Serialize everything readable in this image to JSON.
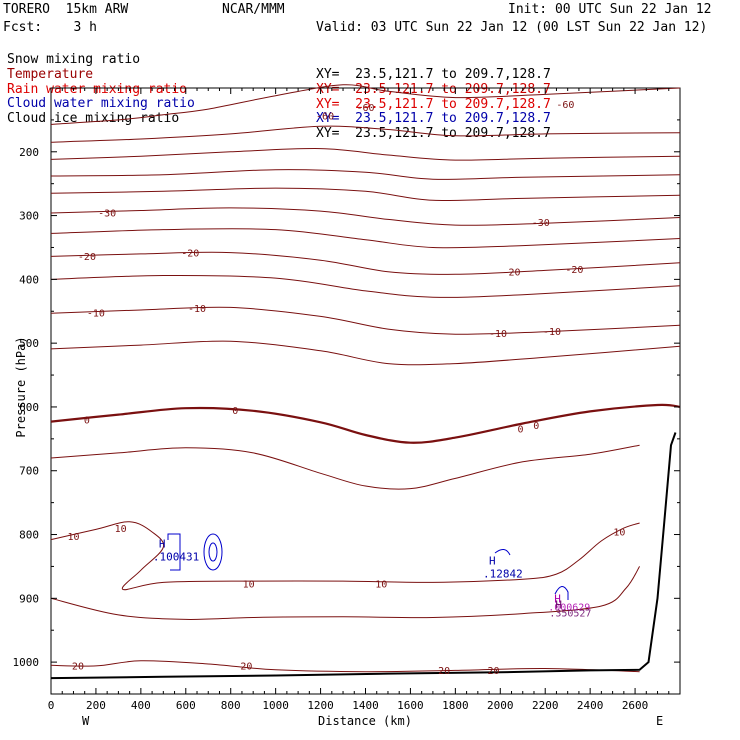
{
  "header": {
    "model": "TORERO  15km ARW",
    "center": "NCAR/MMM",
    "init": "Init: 00 UTC Sun 22 Jan 12",
    "fcst": "Fcst:    3 h",
    "valid": "Valid: 03 UTC Sun 22 Jan 12 (00 LST Sun 22 Jan 12)"
  },
  "legend": [
    {
      "name": "Snow mixing ratio",
      "xy": "XY=  23.5,121.7 to 209.7,128.7",
      "color": "#000000",
      "xy_color": "#000000"
    },
    {
      "name": "Temperature",
      "xy": "XY=  23.5,121.7 to 209.7,128.7",
      "color": "#990000",
      "xy_color": "#cc0000"
    },
    {
      "name": "Rain water mixing ratio",
      "xy": "XY=  23.5,121.7 to 209.7,128.7",
      "color": "#dd0000",
      "xy_color": "#dd0000"
    },
    {
      "name": "Cloud water mixing ratio",
      "xy": "XY=  23.5,121.7 to 209.7,128.7",
      "color": "#0000aa",
      "xy_color": "#0000aa"
    },
    {
      "name": "Cloud ice mixing ratio",
      "xy": "XY=  23.5,121.7 to 209.7,128.7",
      "color": "#000000",
      "xy_color": "#000000"
    }
  ],
  "chart_data": {
    "type": "line",
    "title": "",
    "xlabel": "Distance (km)",
    "ylabel": "Pressure (hPa)",
    "x_left_label": "W",
    "x_right_label": "E",
    "xlim": [
      0,
      2800
    ],
    "ylim": [
      1050,
      100
    ],
    "x_ticks": [
      0,
      200,
      400,
      600,
      800,
      1000,
      1200,
      1400,
      1600,
      1800,
      2000,
      2200,
      2400,
      2600
    ],
    "y_ticks": [
      200,
      300,
      400,
      500,
      600,
      700,
      800,
      900,
      1000
    ],
    "grid": false,
    "temperature_contours": [
      {
        "level": -60,
        "label": "-60",
        "points": [
          [
            0,
            157
          ],
          [
            300,
            150
          ],
          [
            500,
            142
          ],
          [
            700,
            133
          ],
          [
            1000,
            112
          ],
          [
            1300,
            95
          ],
          [
            1500,
            105
          ],
          [
            1800,
            115
          ],
          [
            2200,
            110
          ],
          [
            2500,
            105
          ],
          [
            2800,
            100
          ]
        ],
        "label_positions": [
          [
            1400,
            130
          ],
          [
            1220,
            143
          ],
          [
            2290,
            125
          ]
        ]
      },
      {
        "level": -50,
        "label": "",
        "points": [
          [
            0,
            185
          ],
          [
            400,
            180
          ],
          [
            800,
            172
          ],
          [
            1200,
            160
          ],
          [
            1500,
            165
          ],
          [
            1800,
            175
          ],
          [
            2200,
            172
          ],
          [
            2800,
            170
          ]
        ],
        "label_positions": []
      },
      {
        "level": -45,
        "label": "",
        "points": [
          [
            0,
            212
          ],
          [
            400,
            207
          ],
          [
            800,
            200
          ],
          [
            1200,
            195
          ],
          [
            1500,
            205
          ],
          [
            1800,
            213
          ],
          [
            2200,
            210
          ],
          [
            2800,
            207
          ]
        ],
        "label_positions": []
      },
      {
        "level": -40,
        "label": "",
        "points": [
          [
            0,
            238
          ],
          [
            500,
            236
          ],
          [
            1000,
            228
          ],
          [
            1400,
            232
          ],
          [
            1700,
            243
          ],
          [
            2100,
            240
          ],
          [
            2800,
            236
          ]
        ],
        "label_positions": []
      },
      {
        "level": -35,
        "label": "",
        "points": [
          [
            0,
            265
          ],
          [
            500,
            262
          ],
          [
            1000,
            257
          ],
          [
            1400,
            262
          ],
          [
            1700,
            276
          ],
          [
            2100,
            273
          ],
          [
            2800,
            268
          ]
        ],
        "label_positions": []
      },
      {
        "level": -30,
        "label": "-30",
        "points": [
          [
            0,
            296
          ],
          [
            400,
            292
          ],
          [
            800,
            288
          ],
          [
            1200,
            293
          ],
          [
            1500,
            306
          ],
          [
            1800,
            315
          ],
          [
            2200,
            312
          ],
          [
            2800,
            303
          ]
        ],
        "label_positions": [
          [
            250,
            295
          ],
          [
            2180,
            310
          ]
        ]
      },
      {
        "level": -25,
        "label": "",
        "points": [
          [
            0,
            328
          ],
          [
            500,
            322
          ],
          [
            1000,
            322
          ],
          [
            1400,
            338
          ],
          [
            1700,
            350
          ],
          [
            2100,
            347
          ],
          [
            2800,
            336
          ]
        ],
        "label_positions": []
      },
      {
        "level": -20,
        "label": "-20",
        "points": [
          [
            0,
            364
          ],
          [
            400,
            360
          ],
          [
            800,
            358
          ],
          [
            1200,
            370
          ],
          [
            1500,
            388
          ],
          [
            1800,
            392
          ],
          [
            2200,
            386
          ],
          [
            2800,
            374
          ]
        ],
        "label_positions": [
          [
            160,
            363
          ],
          [
            620,
            358
          ],
          [
            2050,
            388
          ],
          [
            2330,
            384
          ]
        ]
      },
      {
        "level": -15,
        "label": "",
        "points": [
          [
            0,
            400
          ],
          [
            500,
            394
          ],
          [
            1000,
            398
          ],
          [
            1400,
            418
          ],
          [
            1700,
            428
          ],
          [
            2100,
            424
          ],
          [
            2800,
            410
          ]
        ],
        "label_positions": []
      },
      {
        "level": -10,
        "label": "-10",
        "points": [
          [
            0,
            453
          ],
          [
            400,
            448
          ],
          [
            800,
            444
          ],
          [
            1200,
            458
          ],
          [
            1500,
            478
          ],
          [
            1800,
            486
          ],
          [
            2200,
            482
          ],
          [
            2800,
            472
          ]
        ],
        "label_positions": [
          [
            200,
            452
          ],
          [
            650,
            445
          ],
          [
            1990,
            484
          ],
          [
            2230,
            481
          ]
        ]
      },
      {
        "level": -5,
        "label": "",
        "points": [
          [
            0,
            509
          ],
          [
            400,
            503
          ],
          [
            800,
            497
          ],
          [
            1200,
            512
          ],
          [
            1500,
            532
          ],
          [
            1800,
            532
          ],
          [
            2200,
            522
          ],
          [
            2800,
            505
          ]
        ],
        "label_positions": []
      },
      {
        "level": 0,
        "label": "0",
        "points": [
          [
            0,
            623
          ],
          [
            300,
            612
          ],
          [
            600,
            602
          ],
          [
            900,
            606
          ],
          [
            1200,
            624
          ],
          [
            1400,
            644
          ],
          [
            1600,
            656
          ],
          [
            1800,
            648
          ],
          [
            2100,
            626
          ],
          [
            2400,
            607
          ],
          [
            2700,
            597
          ],
          [
            2800,
            600
          ]
        ],
        "label_positions": [
          [
            160,
            620
          ],
          [
            820,
            605
          ],
          [
            2090,
            634
          ],
          [
            2160,
            628
          ]
        ]
      },
      {
        "level": 5,
        "label": "",
        "points": [
          [
            0,
            680
          ],
          [
            300,
            672
          ],
          [
            600,
            664
          ],
          [
            900,
            672
          ],
          [
            1200,
            704
          ],
          [
            1400,
            724
          ],
          [
            1600,
            728
          ],
          [
            1800,
            712
          ],
          [
            2100,
            686
          ],
          [
            2400,
            674
          ],
          [
            2620,
            660
          ]
        ],
        "label_positions": []
      },
      {
        "level": 10,
        "label": "10",
        "points": [
          [
            0,
            808
          ],
          [
            200,
            792
          ],
          [
            350,
            780
          ],
          [
            450,
            796
          ],
          [
            500,
            820
          ],
          [
            400,
            856
          ],
          [
            320,
            886
          ],
          [
            500,
            875
          ],
          [
            900,
            873
          ],
          [
            1300,
            873
          ],
          [
            1700,
            875
          ],
          [
            2100,
            870
          ],
          [
            2250,
            862
          ],
          [
            2350,
            840
          ],
          [
            2450,
            810
          ],
          [
            2550,
            790
          ],
          [
            2620,
            782
          ]
        ],
        "label_positions": [
          [
            100,
            802
          ],
          [
            310,
            790
          ],
          [
            880,
            877
          ],
          [
            1470,
            877
          ],
          [
            2530,
            795
          ]
        ]
      },
      {
        "level": 15,
        "label": "",
        "points": [
          [
            0,
            900
          ],
          [
            300,
            926
          ],
          [
            600,
            933
          ],
          [
            900,
            930
          ],
          [
            1300,
            929
          ],
          [
            1700,
            930
          ],
          [
            2100,
            924
          ],
          [
            2450,
            912
          ],
          [
            2560,
            884
          ],
          [
            2620,
            850
          ]
        ],
        "label_positions": []
      },
      {
        "level": 20,
        "label": "20",
        "points": [
          [
            0,
            1005
          ],
          [
            200,
            1006
          ],
          [
            400,
            998
          ],
          [
            700,
            1003
          ],
          [
            1000,
            1012
          ],
          [
            1400,
            1015
          ],
          [
            1800,
            1013
          ],
          [
            2200,
            1010
          ],
          [
            2620,
            1015
          ]
        ],
        "label_positions": [
          [
            120,
            1005
          ],
          [
            870,
            1005
          ],
          [
            1750,
            1012
          ],
          [
            1970,
            1012
          ]
        ]
      }
    ],
    "cloud_water_maxima": [
      {
        "label": "H",
        "value": ".100431",
        "x": 480,
        "y": 820
      },
      {
        "label": "H",
        "value": ".12842",
        "x": 1950,
        "y": 847
      }
    ],
    "cloud_ice_maxima": [
      {
        "label": "H",
        "value": ".000629",
        "x": 2240,
        "y": 900
      },
      {
        "label": "H",
        "value": ".350527",
        "x": 2245,
        "y": 910
      }
    ],
    "terrain_points": [
      [
        0,
        1025
      ],
      [
        500,
        1023
      ],
      [
        1000,
        1021
      ],
      [
        1500,
        1018
      ],
      [
        2000,
        1016
      ],
      [
        2400,
        1013
      ],
      [
        2620,
        1012
      ],
      [
        2660,
        1000
      ],
      [
        2700,
        900
      ],
      [
        2730,
        780
      ],
      [
        2760,
        660
      ],
      [
        2780,
        640
      ]
    ]
  }
}
